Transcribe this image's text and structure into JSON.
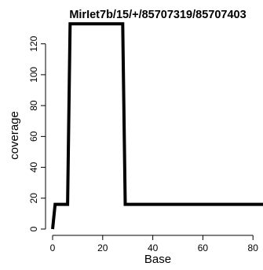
{
  "chart_data": {
    "type": "line",
    "title": "MirIet7b/15/+/85707319/85707403",
    "xlabel": "Base",
    "ylabel": "coverage",
    "xlim": [
      0,
      84
    ],
    "ylim": [
      0,
      128
    ],
    "xticks": [
      0,
      20,
      40,
      60,
      80
    ],
    "yticks": [
      0,
      20,
      40,
      60,
      80,
      100,
      120
    ],
    "grid": false,
    "series": [
      {
        "x": [
          0,
          1,
          6,
          7,
          28,
          29,
          84
        ],
        "y": [
          0,
          16,
          16,
          133,
          133,
          16,
          16
        ]
      }
    ],
    "line_color": "#000000"
  }
}
